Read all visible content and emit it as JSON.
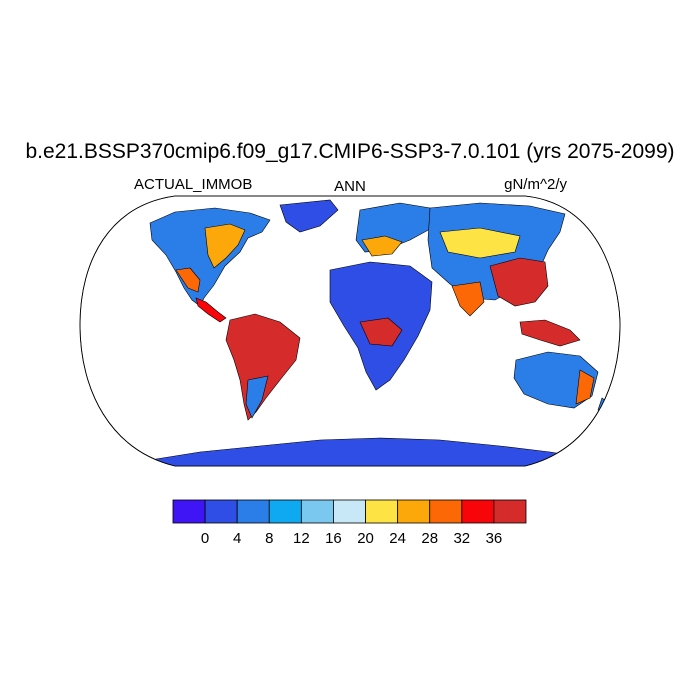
{
  "map": {
    "title": "b.e21.BSSP370cmip6.f09_g17.CMIP6-SSP3-7.0.101 (yrs 2075-2099)",
    "variable": "ACTUAL_IMMOB",
    "season": "ANN",
    "units": "gN/m^2/y",
    "projection": "robinson"
  },
  "legend": {
    "colors": [
      "#3f15f5",
      "#2f4ee6",
      "#2b7de8",
      "#0fa9f2",
      "#7ac7ef",
      "#c8e8f7",
      "#fde343",
      "#fca80a",
      "#fb6805",
      "#f8050a",
      "#d62b2b"
    ],
    "tick_labels": [
      "0",
      "4",
      "8",
      "12",
      "16",
      "20",
      "24",
      "28",
      "32",
      "36"
    ]
  }
}
